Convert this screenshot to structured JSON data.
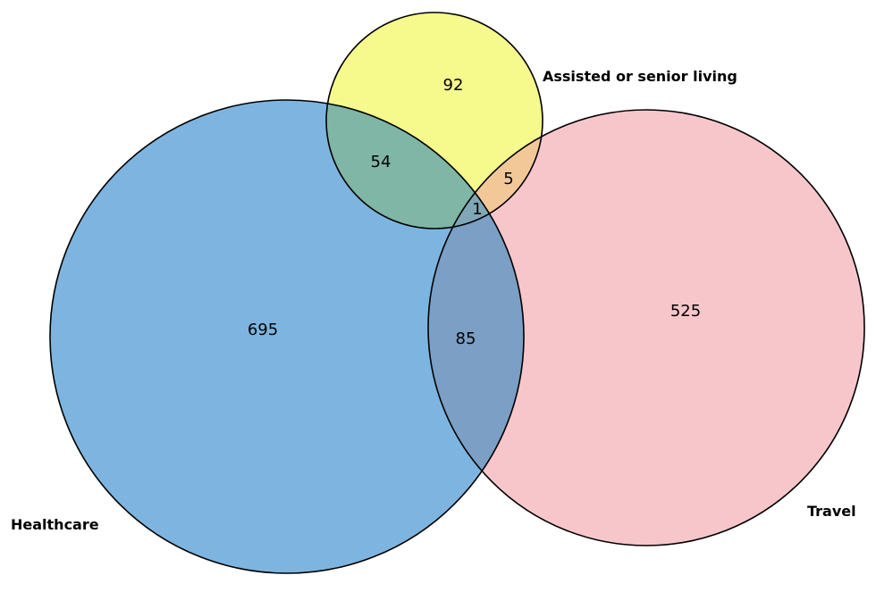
{
  "sets": {
    "healthcare": {
      "label": "Healthcare",
      "color": "#7eb5e0"
    },
    "assisted": {
      "label": "Assisted or senior living",
      "color": "#f6f98c"
    },
    "travel": {
      "label": "Travel",
      "color": "#f7c6cb"
    }
  },
  "regions": {
    "healthcare_only": "695",
    "assisted_only": "92",
    "travel_only": "525",
    "healthcare_assisted": "54",
    "assisted_travel": "5",
    "healthcare_travel": "85",
    "all_three": "1"
  },
  "overlap_colors": {
    "healthcare_assisted": "#7fb6a6",
    "assisted_travel": "#f3c899",
    "healthcare_travel": "#7b9fc5",
    "all_three": "#7fa7b8"
  },
  "outline_color": "#000000"
}
